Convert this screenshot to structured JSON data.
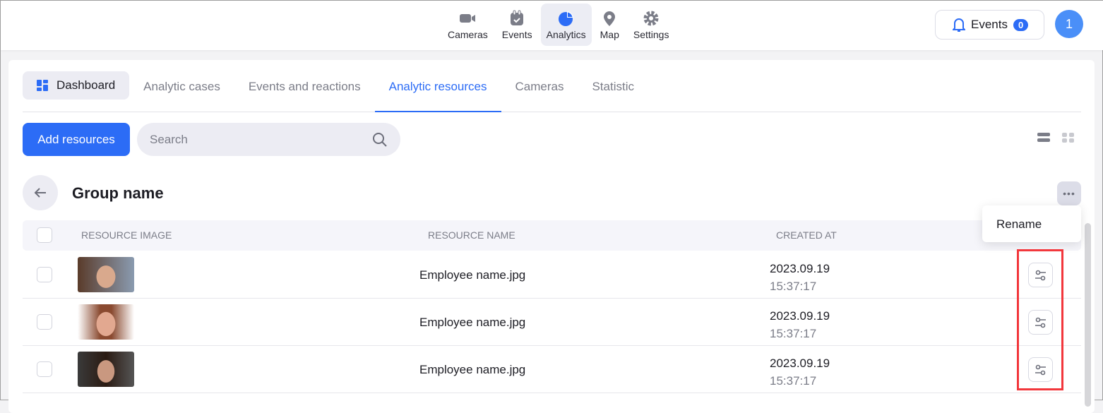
{
  "nav": [
    {
      "label": "Cameras",
      "icon": "camera-icon"
    },
    {
      "label": "Events",
      "icon": "calendar-check-icon"
    },
    {
      "label": "Analytics",
      "icon": "pie-chart-icon",
      "active": true
    },
    {
      "label": "Map",
      "icon": "map-pin-icon"
    },
    {
      "label": "Settings",
      "icon": "gear-icon"
    }
  ],
  "header": {
    "events_label": "Events",
    "events_count": "0",
    "avatar": "1"
  },
  "tabs": [
    "Dashboard",
    "Analytic cases",
    "Events and reactions",
    "Analytic resources",
    "Cameras",
    "Statistic"
  ],
  "active_tab": "Analytic resources",
  "toolbar": {
    "add_label": "Add resources",
    "search_placeholder": "Search"
  },
  "group": {
    "title": "Group name"
  },
  "menu": {
    "rename": "Rename"
  },
  "table": {
    "headers": [
      "RESOURCE IMAGE",
      "RESOURCE NAME",
      "CREATED AT"
    ],
    "rows": [
      {
        "name": "Employee name.jpg",
        "date": "2023.09.19",
        "time": "15:37:17"
      },
      {
        "name": "Employee name.jpg",
        "date": "2023.09.19",
        "time": "15:37:17"
      },
      {
        "name": "Employee name.jpg",
        "date": "2023.09.19",
        "time": "15:37:17"
      }
    ]
  },
  "colors": {
    "accent": "#2c6cf6",
    "highlight": "#f2373c"
  }
}
